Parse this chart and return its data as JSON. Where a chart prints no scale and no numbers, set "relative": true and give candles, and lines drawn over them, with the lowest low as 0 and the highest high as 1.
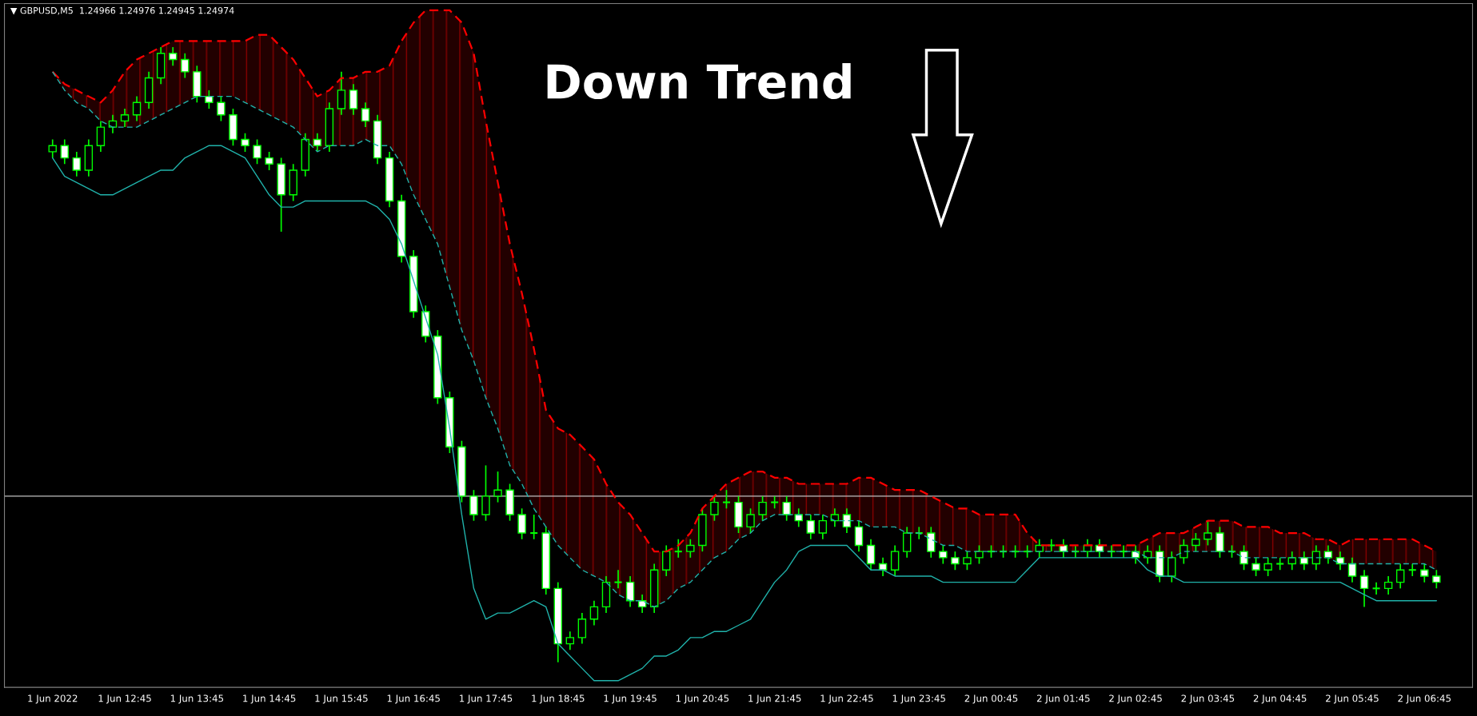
{
  "chart_data": {
    "type": "candlestick",
    "relative": true,
    "title": "▼ GBPUSD,M5  1.24966 1.24976 1.24945 1.24974",
    "annotations": [
      "Down Trend"
    ],
    "categories": [
      "1 Jun 2022",
      null,
      null,
      null,
      null,
      null,
      "1 Jun 12:45",
      null,
      null,
      null,
      null,
      null,
      "1 Jun 13:45",
      null,
      null,
      null,
      null,
      null,
      "1 Jun 14:45",
      null,
      null,
      null,
      null,
      null,
      "1 Jun 15:45",
      null,
      null,
      null,
      null,
      null,
      "1 Jun 16:45",
      null,
      null,
      null,
      null,
      null,
      "1 Jun 17:45",
      null,
      null,
      null,
      null,
      null,
      "1 Jun 18:45",
      null,
      null,
      null,
      null,
      null,
      "1 Jun 19:45",
      null,
      null,
      null,
      null,
      null,
      "1 Jun 20:45",
      null,
      null,
      null,
      null,
      null,
      "1 Jun 21:45",
      null,
      null,
      null,
      null,
      null,
      "1 Jun 22:45",
      null,
      null,
      null,
      null,
      null,
      "1 Jun 23:45",
      null,
      null,
      null,
      null,
      null,
      "2 Jun 00:45",
      null,
      null,
      null,
      null,
      null,
      "2 Jun 01:45",
      null,
      null,
      null,
      null,
      null,
      "2 Jun 02:45",
      null,
      null,
      null,
      null,
      null,
      "2 Jun 03:45",
      null,
      null,
      null,
      null,
      null,
      "2 Jun 04:45",
      null,
      null,
      null,
      null,
      null,
      "2 Jun 05:45",
      null,
      null,
      null,
      null,
      null,
      "2 Jun 06:45",
      null
    ],
    "ohlc": [
      [
        0.83,
        0.85,
        0.82,
        0.84
      ],
      [
        0.84,
        0.85,
        0.81,
        0.82
      ],
      [
        0.82,
        0.83,
        0.79,
        0.8
      ],
      [
        0.8,
        0.85,
        0.79,
        0.84
      ],
      [
        0.84,
        0.88,
        0.83,
        0.87
      ],
      [
        0.87,
        0.89,
        0.86,
        0.88
      ],
      [
        0.88,
        0.9,
        0.87,
        0.89
      ],
      [
        0.89,
        0.92,
        0.88,
        0.91
      ],
      [
        0.91,
        0.96,
        0.9,
        0.95
      ],
      [
        0.95,
        1.0,
        0.94,
        0.99
      ],
      [
        0.99,
        1.0,
        0.97,
        0.98
      ],
      [
        0.98,
        0.99,
        0.95,
        0.96
      ],
      [
        0.96,
        0.97,
        0.91,
        0.92
      ],
      [
        0.92,
        0.93,
        0.9,
        0.91
      ],
      [
        0.91,
        0.92,
        0.88,
        0.89
      ],
      [
        0.89,
        0.9,
        0.84,
        0.85
      ],
      [
        0.85,
        0.86,
        0.83,
        0.84
      ],
      [
        0.84,
        0.85,
        0.81,
        0.82
      ],
      [
        0.82,
        0.83,
        0.8,
        0.81
      ],
      [
        0.81,
        0.82,
        0.7,
        0.76
      ],
      [
        0.76,
        0.81,
        0.75,
        0.8
      ],
      [
        0.8,
        0.86,
        0.79,
        0.85
      ],
      [
        0.85,
        0.86,
        0.83,
        0.84
      ],
      [
        0.84,
        0.91,
        0.83,
        0.9
      ],
      [
        0.9,
        0.96,
        0.89,
        0.93
      ],
      [
        0.93,
        0.94,
        0.89,
        0.9
      ],
      [
        0.9,
        0.91,
        0.87,
        0.88
      ],
      [
        0.88,
        0.89,
        0.81,
        0.82
      ],
      [
        0.82,
        0.83,
        0.74,
        0.75
      ],
      [
        0.75,
        0.76,
        0.65,
        0.66
      ],
      [
        0.66,
        0.67,
        0.56,
        0.57
      ],
      [
        0.57,
        0.58,
        0.52,
        0.53
      ],
      [
        0.53,
        0.54,
        0.42,
        0.43
      ],
      [
        0.43,
        0.44,
        0.34,
        0.35
      ],
      [
        0.35,
        0.36,
        0.26,
        0.27
      ],
      [
        0.27,
        0.28,
        0.23,
        0.24
      ],
      [
        0.24,
        0.32,
        0.23,
        0.27
      ],
      [
        0.27,
        0.31,
        0.26,
        0.28
      ],
      [
        0.28,
        0.29,
        0.23,
        0.24
      ],
      [
        0.24,
        0.25,
        0.2,
        0.21
      ],
      [
        0.21,
        0.24,
        0.2,
        0.21
      ],
      [
        0.21,
        0.22,
        0.11,
        0.12
      ],
      [
        0.12,
        0.13,
        0.0,
        0.03
      ],
      [
        0.03,
        0.05,
        0.02,
        0.04
      ],
      [
        0.04,
        0.08,
        0.03,
        0.07
      ],
      [
        0.07,
        0.1,
        0.06,
        0.09
      ],
      [
        0.09,
        0.14,
        0.08,
        0.13
      ],
      [
        0.13,
        0.15,
        0.12,
        0.13
      ],
      [
        0.13,
        0.14,
        0.09,
        0.1
      ],
      [
        0.1,
        0.11,
        0.08,
        0.09
      ],
      [
        0.09,
        0.16,
        0.08,
        0.15
      ],
      [
        0.15,
        0.19,
        0.14,
        0.18
      ],
      [
        0.18,
        0.2,
        0.17,
        0.18
      ],
      [
        0.18,
        0.2,
        0.17,
        0.19
      ],
      [
        0.19,
        0.25,
        0.18,
        0.24
      ],
      [
        0.24,
        0.27,
        0.23,
        0.26
      ],
      [
        0.26,
        0.28,
        0.25,
        0.26
      ],
      [
        0.26,
        0.27,
        0.21,
        0.22
      ],
      [
        0.22,
        0.25,
        0.21,
        0.24
      ],
      [
        0.24,
        0.27,
        0.23,
        0.26
      ],
      [
        0.26,
        0.27,
        0.25,
        0.26
      ],
      [
        0.26,
        0.27,
        0.23,
        0.24
      ],
      [
        0.24,
        0.25,
        0.22,
        0.23
      ],
      [
        0.23,
        0.24,
        0.2,
        0.21
      ],
      [
        0.21,
        0.24,
        0.2,
        0.23
      ],
      [
        0.23,
        0.25,
        0.22,
        0.24
      ],
      [
        0.24,
        0.25,
        0.21,
        0.22
      ],
      [
        0.22,
        0.23,
        0.18,
        0.19
      ],
      [
        0.19,
        0.2,
        0.15,
        0.16
      ],
      [
        0.16,
        0.17,
        0.14,
        0.15
      ],
      [
        0.15,
        0.19,
        0.14,
        0.18
      ],
      [
        0.18,
        0.22,
        0.17,
        0.21
      ],
      [
        0.21,
        0.22,
        0.2,
        0.21
      ],
      [
        0.21,
        0.22,
        0.17,
        0.18
      ],
      [
        0.18,
        0.19,
        0.16,
        0.17
      ],
      [
        0.17,
        0.18,
        0.15,
        0.16
      ],
      [
        0.16,
        0.18,
        0.15,
        0.17
      ],
      [
        0.17,
        0.19,
        0.16,
        0.18
      ],
      [
        0.18,
        0.19,
        0.17,
        0.18
      ],
      [
        0.18,
        0.19,
        0.17,
        0.18
      ],
      [
        0.18,
        0.19,
        0.17,
        0.18
      ],
      [
        0.18,
        0.19,
        0.17,
        0.18
      ],
      [
        0.18,
        0.2,
        0.17,
        0.19
      ],
      [
        0.19,
        0.2,
        0.18,
        0.19
      ],
      [
        0.19,
        0.2,
        0.17,
        0.18
      ],
      [
        0.18,
        0.19,
        0.17,
        0.18
      ],
      [
        0.18,
        0.2,
        0.17,
        0.19
      ],
      [
        0.19,
        0.2,
        0.17,
        0.18
      ],
      [
        0.18,
        0.19,
        0.17,
        0.18
      ],
      [
        0.18,
        0.19,
        0.17,
        0.18
      ],
      [
        0.18,
        0.19,
        0.16,
        0.17
      ],
      [
        0.17,
        0.19,
        0.16,
        0.18
      ],
      [
        0.18,
        0.19,
        0.13,
        0.14
      ],
      [
        0.14,
        0.18,
        0.13,
        0.17
      ],
      [
        0.17,
        0.2,
        0.16,
        0.19
      ],
      [
        0.19,
        0.21,
        0.18,
        0.2
      ],
      [
        0.2,
        0.23,
        0.19,
        0.21
      ],
      [
        0.21,
        0.22,
        0.17,
        0.18
      ],
      [
        0.18,
        0.19,
        0.17,
        0.18
      ],
      [
        0.18,
        0.19,
        0.15,
        0.16
      ],
      [
        0.16,
        0.17,
        0.14,
        0.15
      ],
      [
        0.15,
        0.17,
        0.14,
        0.16
      ],
      [
        0.16,
        0.17,
        0.15,
        0.16
      ],
      [
        0.16,
        0.18,
        0.15,
        0.17
      ],
      [
        0.17,
        0.18,
        0.15,
        0.16
      ],
      [
        0.16,
        0.19,
        0.15,
        0.18
      ],
      [
        0.18,
        0.19,
        0.16,
        0.17
      ],
      [
        0.17,
        0.18,
        0.15,
        0.16
      ],
      [
        0.16,
        0.17,
        0.13,
        0.14
      ],
      [
        0.14,
        0.15,
        0.09,
        0.12
      ],
      [
        0.12,
        0.13,
        0.11,
        0.12
      ],
      [
        0.12,
        0.14,
        0.11,
        0.13
      ],
      [
        0.13,
        0.16,
        0.12,
        0.15
      ],
      [
        0.15,
        0.16,
        0.14,
        0.15
      ],
      [
        0.15,
        0.16,
        0.13,
        0.14
      ],
      [
        0.14,
        0.15,
        0.12,
        0.13
      ]
    ],
    "series": [
      {
        "type": "area",
        "color": "#ff0000",
        "line_style": "dashed",
        "values": [
          0.96,
          0.94,
          0.93,
          0.92,
          0.91,
          0.93,
          0.96,
          0.98,
          0.99,
          1.0,
          1.01,
          1.01,
          1.01,
          1.01,
          1.01,
          1.01,
          1.01,
          1.02,
          1.02,
          1.0,
          0.98,
          0.95,
          0.92,
          0.93,
          0.95,
          0.95,
          0.96,
          0.96,
          0.97,
          1.01,
          1.04,
          1.06,
          1.06,
          1.06,
          1.04,
          0.99,
          0.88,
          0.78,
          0.68,
          0.6,
          0.51,
          0.41,
          0.38,
          0.37,
          0.35,
          0.33,
          0.29,
          0.26,
          0.24,
          0.21,
          0.18,
          0.18,
          0.19,
          0.21,
          0.25,
          0.27,
          0.29,
          0.3,
          0.31,
          0.31,
          0.3,
          0.3,
          0.29,
          0.29,
          0.29,
          0.29,
          0.29,
          0.3,
          0.3,
          0.29,
          0.28,
          0.28,
          0.28,
          0.27,
          0.26,
          0.25,
          0.25,
          0.24,
          0.24,
          0.24,
          0.24,
          0.21,
          0.19,
          0.19,
          0.19,
          0.19,
          0.19,
          0.19,
          0.19,
          0.19,
          0.19,
          0.2,
          0.21,
          0.21,
          0.21,
          0.22,
          0.23,
          0.23,
          0.23,
          0.22,
          0.22,
          0.22,
          0.21,
          0.21,
          0.21,
          0.2,
          0.2,
          0.19,
          0.2,
          0.2,
          0.2,
          0.2,
          0.2,
          0.2,
          0.19,
          0.18
        ]
      },
      {
        "type": "line",
        "color": "#20b2aa",
        "line_style": "dashed",
        "values": [
          0.96,
          0.93,
          0.91,
          0.9,
          0.88,
          0.87,
          0.87,
          0.87,
          0.88,
          0.89,
          0.9,
          0.91,
          0.92,
          0.92,
          0.92,
          0.92,
          0.91,
          0.9,
          0.89,
          0.88,
          0.87,
          0.85,
          0.83,
          0.84,
          0.84,
          0.84,
          0.85,
          0.84,
          0.84,
          0.81,
          0.76,
          0.72,
          0.68,
          0.61,
          0.54,
          0.49,
          0.43,
          0.38,
          0.32,
          0.29,
          0.25,
          0.22,
          0.19,
          0.17,
          0.15,
          0.14,
          0.13,
          0.11,
          0.1,
          0.1,
          0.09,
          0.1,
          0.12,
          0.13,
          0.15,
          0.17,
          0.18,
          0.2,
          0.21,
          0.23,
          0.24,
          0.24,
          0.24,
          0.24,
          0.24,
          0.23,
          0.23,
          0.23,
          0.22,
          0.22,
          0.22,
          0.21,
          0.21,
          0.2,
          0.19,
          0.19,
          0.18,
          0.18,
          0.18,
          0.18,
          0.18,
          0.18,
          0.18,
          0.18,
          0.18,
          0.18,
          0.18,
          0.18,
          0.18,
          0.18,
          0.18,
          0.17,
          0.17,
          0.17,
          0.18,
          0.18,
          0.18,
          0.18,
          0.18,
          0.17,
          0.17,
          0.17,
          0.17,
          0.17,
          0.17,
          0.17,
          0.17,
          0.16,
          0.16,
          0.16,
          0.16,
          0.16,
          0.16,
          0.16,
          0.16,
          0.15
        ]
      },
      {
        "type": "line",
        "color": "#20b2aa",
        "line_style": "solid",
        "values": [
          0.82,
          0.79,
          0.78,
          0.77,
          0.76,
          0.76,
          0.77,
          0.78,
          0.79,
          0.8,
          0.8,
          0.82,
          0.83,
          0.84,
          0.84,
          0.83,
          0.82,
          0.79,
          0.76,
          0.74,
          0.74,
          0.75,
          0.75,
          0.75,
          0.75,
          0.75,
          0.75,
          0.74,
          0.72,
          0.68,
          0.62,
          0.56,
          0.5,
          0.38,
          0.24,
          0.12,
          0.07,
          0.08,
          0.08,
          0.09,
          0.1,
          0.09,
          0.03,
          0.01,
          -0.01,
          -0.03,
          -0.03,
          -0.03,
          -0.02,
          -0.01,
          0.01,
          0.01,
          0.02,
          0.04,
          0.04,
          0.05,
          0.05,
          0.06,
          0.07,
          0.1,
          0.13,
          0.15,
          0.18,
          0.19,
          0.19,
          0.19,
          0.19,
          0.17,
          0.15,
          0.15,
          0.14,
          0.14,
          0.14,
          0.14,
          0.13,
          0.13,
          0.13,
          0.13,
          0.13,
          0.13,
          0.13,
          0.15,
          0.17,
          0.17,
          0.17,
          0.17,
          0.17,
          0.17,
          0.17,
          0.17,
          0.17,
          0.15,
          0.14,
          0.14,
          0.13,
          0.13,
          0.13,
          0.13,
          0.13,
          0.13,
          0.13,
          0.13,
          0.13,
          0.13,
          0.13,
          0.13,
          0.13,
          0.13,
          0.12,
          0.11,
          0.1,
          0.1,
          0.1,
          0.1,
          0.1,
          0.1
        ]
      }
    ],
    "ref_lines": [
      {
        "axis": "y",
        "value": 0.27,
        "color": "#c0c0c0"
      }
    ]
  }
}
